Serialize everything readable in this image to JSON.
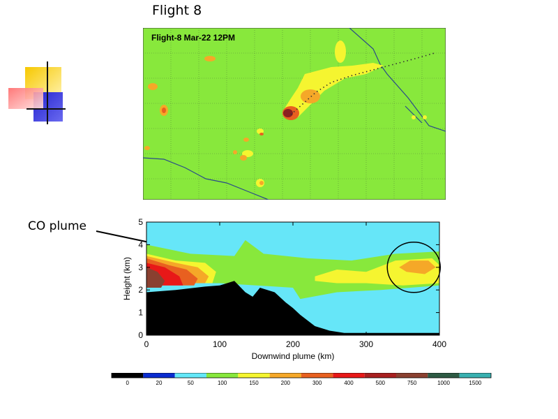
{
  "slide": {
    "title": "Flight 8",
    "callout_label": "CO plume"
  },
  "colors": {
    "map_background": "#88e83c",
    "cross_section_background": "#66e6f8",
    "terrain": "#000000"
  },
  "chart_data": [
    {
      "type": "heatmap",
      "title": "Flight-8 Mar-22 12PM",
      "grid": true,
      "description_overlay": "flight track (dotted line) and boundary lines"
    },
    {
      "type": "area",
      "title": "",
      "xlabel": "Downwind plume (km)",
      "ylabel": "Height (km)",
      "xlim": [
        0,
        400
      ],
      "ylim": [
        0,
        5
      ],
      "x_ticks": [
        "0",
        "100",
        "200",
        "300",
        "400"
      ],
      "y_ticks": [
        "0",
        "1",
        "2",
        "3",
        "4",
        "5"
      ],
      "terrain_profile": {
        "x": [
          0,
          40,
          80,
          100,
          120,
          135,
          145,
          155,
          165,
          175,
          190,
          200,
          210,
          230,
          250,
          270,
          300,
          350,
          400
        ],
        "y": [
          1.9,
          2.0,
          2.15,
          2.2,
          2.4,
          1.9,
          1.7,
          2.1,
          2.0,
          1.9,
          1.45,
          1.2,
          0.9,
          0.4,
          0.2,
          0.1,
          0.1,
          0.1,
          0.1
        ]
      },
      "plume_feature": {
        "x": 365,
        "y": 3.0,
        "label": "circled maximum"
      }
    },
    {
      "type": "table",
      "title": "",
      "colorbar": {
        "values": [
          "0",
          "20",
          "50",
          "100",
          "150",
          "200",
          "300",
          "400",
          "500",
          "750",
          "1000",
          "1500"
        ],
        "colors": [
          "#000000",
          "#0a2cd0",
          "#64e8f8",
          "#88e83c",
          "#f5f530",
          "#f5a828",
          "#e86020",
          "#e81818",
          "#a82020",
          "#8a4030",
          "#2d5a44",
          "#38b0b0"
        ]
      }
    }
  ]
}
